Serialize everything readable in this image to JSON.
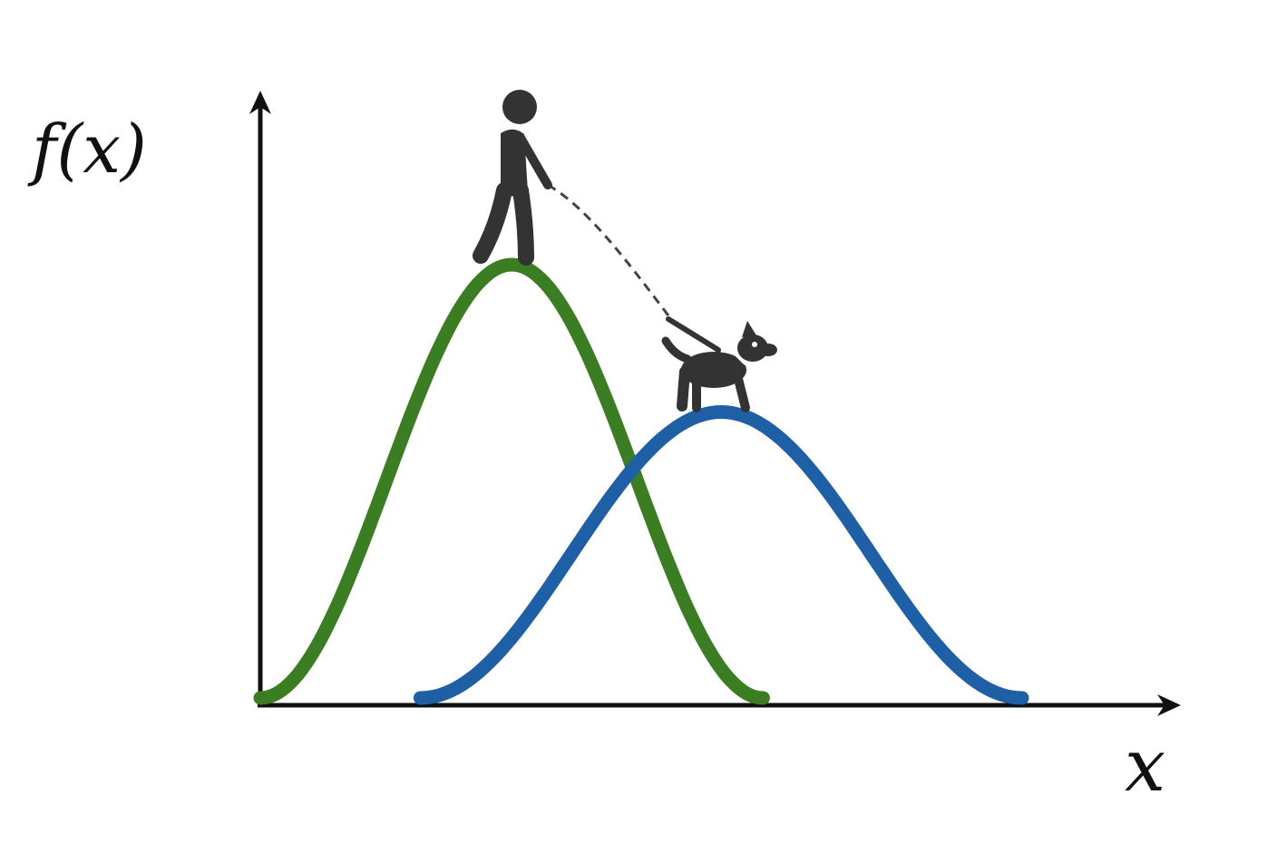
{
  "axes": {
    "y_label": "f(x)",
    "x_label": "x",
    "axis_color": "#111111"
  },
  "curves": [
    {
      "name": "",
      "color": "#3a7d22",
      "peak": 1.0,
      "center": 0.33,
      "support": [
        0.0,
        0.66
      ]
    },
    {
      "name": "",
      "color": "#1f5fa5",
      "peak": 0.66,
      "center": 0.61,
      "support": [
        0.21,
        1.0
      ]
    }
  ],
  "figures": {
    "walker": {
      "icon": "person-walking-icon",
      "color": "#333333"
    },
    "dog": {
      "icon": "dog-icon",
      "color": "#333333"
    },
    "leash": {
      "icon": "leash-dashed-line",
      "color": "#444444"
    }
  }
}
